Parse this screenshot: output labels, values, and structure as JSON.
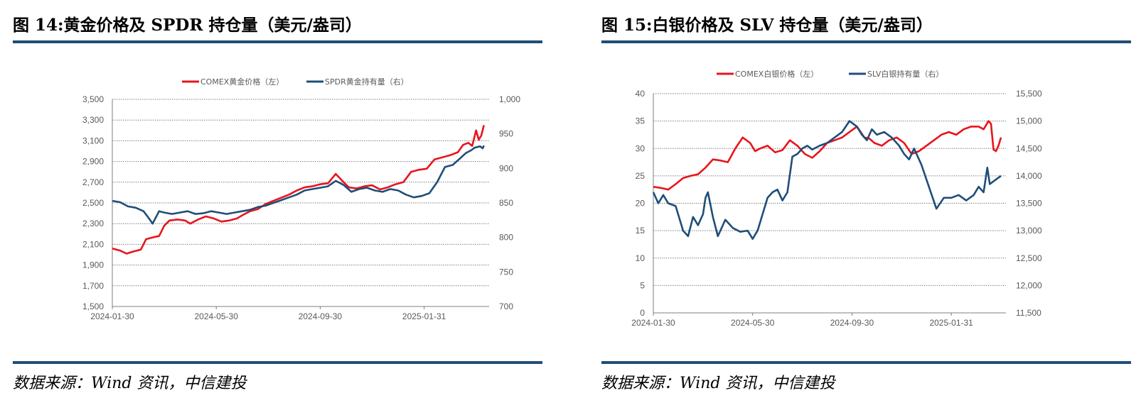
{
  "left": {
    "title": "图 14:黄金价格及 SPDR 持仓量（美元/盎司）",
    "source": "数据来源：Wind 资讯，中信建投",
    "chart_data": {
      "type": "line",
      "title": "黄金价格及 SPDR 持仓量（美元/盎司）",
      "x_labels": [
        "2024-01-30",
        "2024-05-30",
        "2024-09-30",
        "2025-01-31"
      ],
      "x_tick_dates": [
        0,
        4,
        8,
        12
      ],
      "x_range": [
        0,
        14.5
      ],
      "y_left": {
        "min": 1500,
        "max": 3500,
        "ticks": [
          1500,
          1700,
          1900,
          2100,
          2300,
          2500,
          2700,
          2900,
          3100,
          3300,
          3500
        ],
        "tick_labels": [
          "1,500",
          "1,700",
          "1,900",
          "2,100",
          "2,300",
          "2,500",
          "2,700",
          "2,900",
          "3,100",
          "3,300",
          "3,500"
        ]
      },
      "y_right": {
        "min": 700,
        "max": 1000,
        "ticks": [
          700,
          750,
          800,
          850,
          900,
          950,
          1000
        ],
        "tick_labels": [
          "700",
          "750",
          "800",
          "850",
          "900",
          "950",
          "1,000"
        ]
      },
      "grid": true,
      "legend_position": "top",
      "series": [
        {
          "name": "COMEX黄金价格（左）",
          "axis": "left",
          "color": "#e8141e",
          "x": [
            0,
            0.3,
            0.55,
            0.8,
            1.1,
            1.3,
            1.6,
            1.8,
            2.0,
            2.2,
            2.5,
            2.8,
            3.0,
            3.3,
            3.6,
            3.9,
            4.2,
            4.5,
            4.8,
            5.0,
            5.3,
            5.6,
            5.9,
            6.2,
            6.5,
            6.8,
            7.1,
            7.4,
            7.7,
            8.0,
            8.3,
            8.6,
            8.9,
            9.1,
            9.4,
            9.7,
            10.0,
            10.3,
            10.6,
            10.9,
            11.2,
            11.5,
            11.8,
            12.1,
            12.4,
            12.7,
            13.0,
            13.3,
            13.5,
            13.7,
            13.85,
            14.0,
            14.1,
            14.2,
            14.3
          ],
          "values": [
            2060,
            2040,
            2010,
            2030,
            2050,
            2150,
            2170,
            2180,
            2280,
            2330,
            2340,
            2330,
            2300,
            2340,
            2370,
            2350,
            2320,
            2330,
            2350,
            2380,
            2420,
            2440,
            2490,
            2520,
            2550,
            2580,
            2620,
            2650,
            2660,
            2680,
            2690,
            2780,
            2700,
            2650,
            2640,
            2660,
            2670,
            2630,
            2650,
            2680,
            2700,
            2800,
            2820,
            2830,
            2920,
            2940,
            2960,
            2990,
            3060,
            3080,
            3050,
            3200,
            3110,
            3150,
            3250
          ]
        },
        {
          "name": "SPDR黄金持有量（右）",
          "axis": "right",
          "color": "#1f4e79",
          "x": [
            0,
            0.3,
            0.6,
            0.9,
            1.2,
            1.4,
            1.55,
            1.8,
            2.0,
            2.3,
            2.6,
            2.9,
            3.2,
            3.5,
            3.8,
            4.1,
            4.4,
            4.7,
            5.0,
            5.3,
            5.6,
            5.9,
            6.2,
            6.5,
            6.8,
            7.1,
            7.4,
            7.7,
            8.0,
            8.3,
            8.6,
            8.9,
            9.2,
            9.5,
            9.8,
            10.1,
            10.4,
            10.7,
            11.0,
            11.3,
            11.6,
            11.9,
            12.2,
            12.5,
            12.8,
            13.1,
            13.4,
            13.6,
            13.8,
            13.95,
            14.05,
            14.15,
            14.25,
            14.3
          ],
          "values": [
            853,
            851,
            845,
            843,
            838,
            828,
            820,
            838,
            836,
            834,
            836,
            838,
            834,
            835,
            838,
            836,
            834,
            836,
            838,
            840,
            844,
            846,
            850,
            854,
            858,
            862,
            868,
            870,
            872,
            874,
            882,
            876,
            866,
            870,
            872,
            868,
            866,
            870,
            868,
            862,
            858,
            860,
            864,
            880,
            902,
            905,
            915,
            922,
            926,
            930,
            931,
            932,
            929,
            933
          ]
        }
      ]
    }
  },
  "right": {
    "title": "图 15:白银价格及 SLV 持仓量（美元/盎司）",
    "source": "数据来源：Wind 资讯，中信建投",
    "chart_data": {
      "type": "line",
      "title": "白银价格及 SLV 持仓量（美元/盎司）",
      "x_labels": [
        "2024-01-30",
        "2024-05-30",
        "2024-09-30",
        "2025-01-31"
      ],
      "x_tick_dates": [
        0,
        4,
        8,
        12
      ],
      "x_range": [
        0,
        14.2
      ],
      "y_left": {
        "min": 0,
        "max": 40,
        "ticks": [
          0,
          5,
          10,
          15,
          20,
          25,
          30,
          35,
          40
        ],
        "tick_labels": [
          "0",
          "5",
          "10",
          "15",
          "20",
          "25",
          "30",
          "35",
          "40"
        ]
      },
      "y_right": {
        "min": 11500,
        "max": 15500,
        "ticks": [
          11500,
          12000,
          12500,
          13000,
          13500,
          14000,
          14500,
          15000,
          15500
        ],
        "tick_labels": [
          "11,500",
          "12,000",
          "12,500",
          "13,000",
          "13,500",
          "14,000",
          "14,500",
          "15,000",
          "15,500"
        ]
      },
      "grid": true,
      "legend_position": "top",
      "series": [
        {
          "name": "COMEX白银价格（左）",
          "axis": "left",
          "color": "#e8141e",
          "x": [
            0,
            0.3,
            0.6,
            0.9,
            1.2,
            1.5,
            1.8,
            2.1,
            2.4,
            2.7,
            3.0,
            3.3,
            3.6,
            3.9,
            4.1,
            4.3,
            4.6,
            4.9,
            5.2,
            5.5,
            5.8,
            6.1,
            6.4,
            6.7,
            7.0,
            7.3,
            7.6,
            7.9,
            8.2,
            8.5,
            8.7,
            8.9,
            9.2,
            9.5,
            9.8,
            10.1,
            10.4,
            10.7,
            11.0,
            11.3,
            11.6,
            11.9,
            12.2,
            12.5,
            12.8,
            13.1,
            13.3,
            13.5,
            13.6,
            13.7,
            13.8,
            13.9,
            14.0
          ],
          "values": [
            23.0,
            22.8,
            22.5,
            23.5,
            24.6,
            25.0,
            25.3,
            26.5,
            28.0,
            27.8,
            27.5,
            30.0,
            32.0,
            31.0,
            29.5,
            30.0,
            30.5,
            29.3,
            29.7,
            31.5,
            30.5,
            29.0,
            28.3,
            29.5,
            31.0,
            31.5,
            32.0,
            33.0,
            34.0,
            32.0,
            31.8,
            31.0,
            30.5,
            31.5,
            32.0,
            31.0,
            29.0,
            29.5,
            30.5,
            31.5,
            32.5,
            33.0,
            32.5,
            33.5,
            34.0,
            34.0,
            33.5,
            35.0,
            34.5,
            29.8,
            29.5,
            30.5,
            32.0
          ]
        },
        {
          "name": "SLV白银持有量（右）",
          "axis": "right",
          "color": "#1f4e79",
          "x": [
            0,
            0.2,
            0.4,
            0.6,
            0.9,
            1.2,
            1.4,
            1.6,
            1.8,
            2.0,
            2.1,
            2.2,
            2.4,
            2.6,
            2.9,
            3.2,
            3.5,
            3.8,
            4.0,
            4.2,
            4.4,
            4.6,
            4.8,
            5.0,
            5.2,
            5.4,
            5.6,
            5.8,
            6.0,
            6.2,
            6.4,
            6.7,
            7.0,
            7.3,
            7.6,
            7.9,
            8.2,
            8.4,
            8.6,
            8.8,
            9.0,
            9.3,
            9.6,
            9.9,
            10.1,
            10.3,
            10.5,
            10.8,
            11.1,
            11.4,
            11.7,
            12.0,
            12.3,
            12.6,
            12.9,
            13.1,
            13.3,
            13.45,
            13.55,
            13.7,
            13.85,
            14.0
          ],
          "values": [
            13700,
            13500,
            13650,
            13500,
            13450,
            13000,
            12900,
            13250,
            13100,
            13300,
            13600,
            13700,
            13250,
            12900,
            13200,
            13050,
            12980,
            13000,
            12850,
            13000,
            13300,
            13600,
            13700,
            13750,
            13550,
            13700,
            14350,
            14400,
            14500,
            14550,
            14480,
            14550,
            14600,
            14700,
            14800,
            15000,
            14900,
            14750,
            14650,
            14850,
            14750,
            14800,
            14700,
            14550,
            14400,
            14300,
            14500,
            14200,
            13800,
            13400,
            13600,
            13600,
            13650,
            13550,
            13650,
            13800,
            13700,
            14150,
            13850,
            13900,
            13950,
            14000
          ]
        }
      ]
    }
  }
}
